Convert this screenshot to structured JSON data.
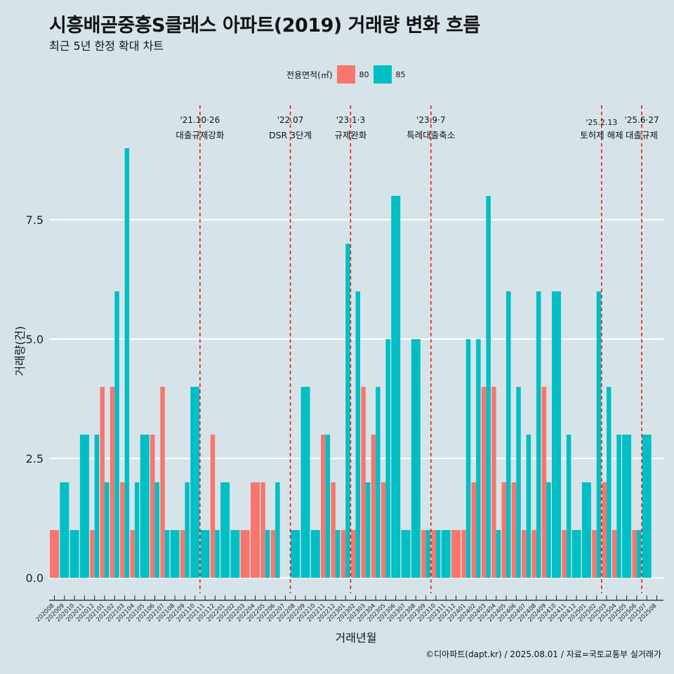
{
  "chart_data": {
    "type": "bar",
    "title": "시흥배곧중흥S클래스 아파트(2019) 거래량 변화 흐름",
    "subtitle": "최근 5년 한정 확대 차트",
    "xlabel": "거래년월",
    "ylabel": "거래량(건)",
    "ylim": [
      -0.8,
      9.5
    ],
    "yticks": [
      0.0,
      2.5,
      5.0,
      7.5
    ],
    "ytick_labels": [
      "0.0",
      "2.5",
      "5.0",
      "7.5"
    ],
    "legend_title": "전용면적(㎡)",
    "categories": [
      "202008",
      "202009",
      "202010",
      "202011",
      "202012",
      "202101",
      "202102",
      "202103",
      "202104",
      "202105",
      "202106",
      "202107",
      "202108",
      "202109",
      "202110",
      "202111",
      "202112",
      "202201",
      "202202",
      "202203",
      "202204",
      "202205",
      "202206",
      "202207",
      "202208",
      "202209",
      "202210",
      "202211",
      "202212",
      "202301",
      "202302",
      "202303",
      "202304",
      "202305",
      "202306",
      "202307",
      "202308",
      "202309",
      "202310",
      "202311",
      "202312",
      "202401",
      "202402",
      "202403",
      "202404",
      "202405",
      "202406",
      "202407",
      "202408",
      "202409",
      "202410",
      "202411",
      "202412",
      "202501",
      "202502",
      "202503",
      "202504",
      "202505",
      "202506",
      "202507",
      "202508"
    ],
    "series": [
      {
        "name": "80",
        "color": "#f8766d",
        "values": [
          1,
          0,
          0,
          0,
          1,
          4,
          4,
          2,
          1,
          0,
          3,
          4,
          0,
          1,
          0,
          0,
          3,
          0,
          0,
          1,
          2,
          2,
          1,
          0,
          0,
          0,
          0,
          3,
          2,
          1,
          1,
          4,
          3,
          2,
          0,
          0,
          0,
          1,
          1,
          0,
          1,
          1,
          2,
          4,
          4,
          2,
          2,
          1,
          1,
          4,
          0,
          1,
          0,
          0,
          1,
          2,
          1,
          0,
          1,
          0,
          0
        ]
      },
      {
        "name": "85",
        "color": "#00bfc4",
        "values": [
          0,
          2,
          1,
          3,
          3,
          2,
          6,
          9,
          2,
          3,
          2,
          1,
          1,
          2,
          4,
          1,
          1,
          2,
          1,
          0,
          0,
          1,
          2,
          0,
          1,
          4,
          1,
          3,
          1,
          7,
          6,
          2,
          4,
          5,
          8,
          1,
          5,
          1,
          1,
          1,
          0,
          5,
          5,
          8,
          1,
          6,
          4,
          3,
          6,
          2,
          6,
          3,
          1,
          2,
          6,
          4,
          3,
          3,
          1,
          3,
          0
        ]
      }
    ],
    "events": [
      {
        "date": "'21.10·26",
        "label": "대출규제강화",
        "after": "202110"
      },
      {
        "date": "'22.07",
        "label": "DSR 3단계",
        "after": "202207"
      },
      {
        "date": "'23.1·3",
        "label": "규제완화",
        "after": "202301"
      },
      {
        "date": "'23.9·7",
        "label": "특례대출축소",
        "after": "202309"
      },
      {
        "date": "'25.2.13",
        "label": "토허제 해제",
        "after": "202502"
      },
      {
        "date": "'25.6·27",
        "label": "대출규제",
        "after": "202506"
      }
    ]
  },
  "caption": "©디아파트(dapt.kr) / 2025.08.01 / 자료=국토교통부 실거래가"
}
